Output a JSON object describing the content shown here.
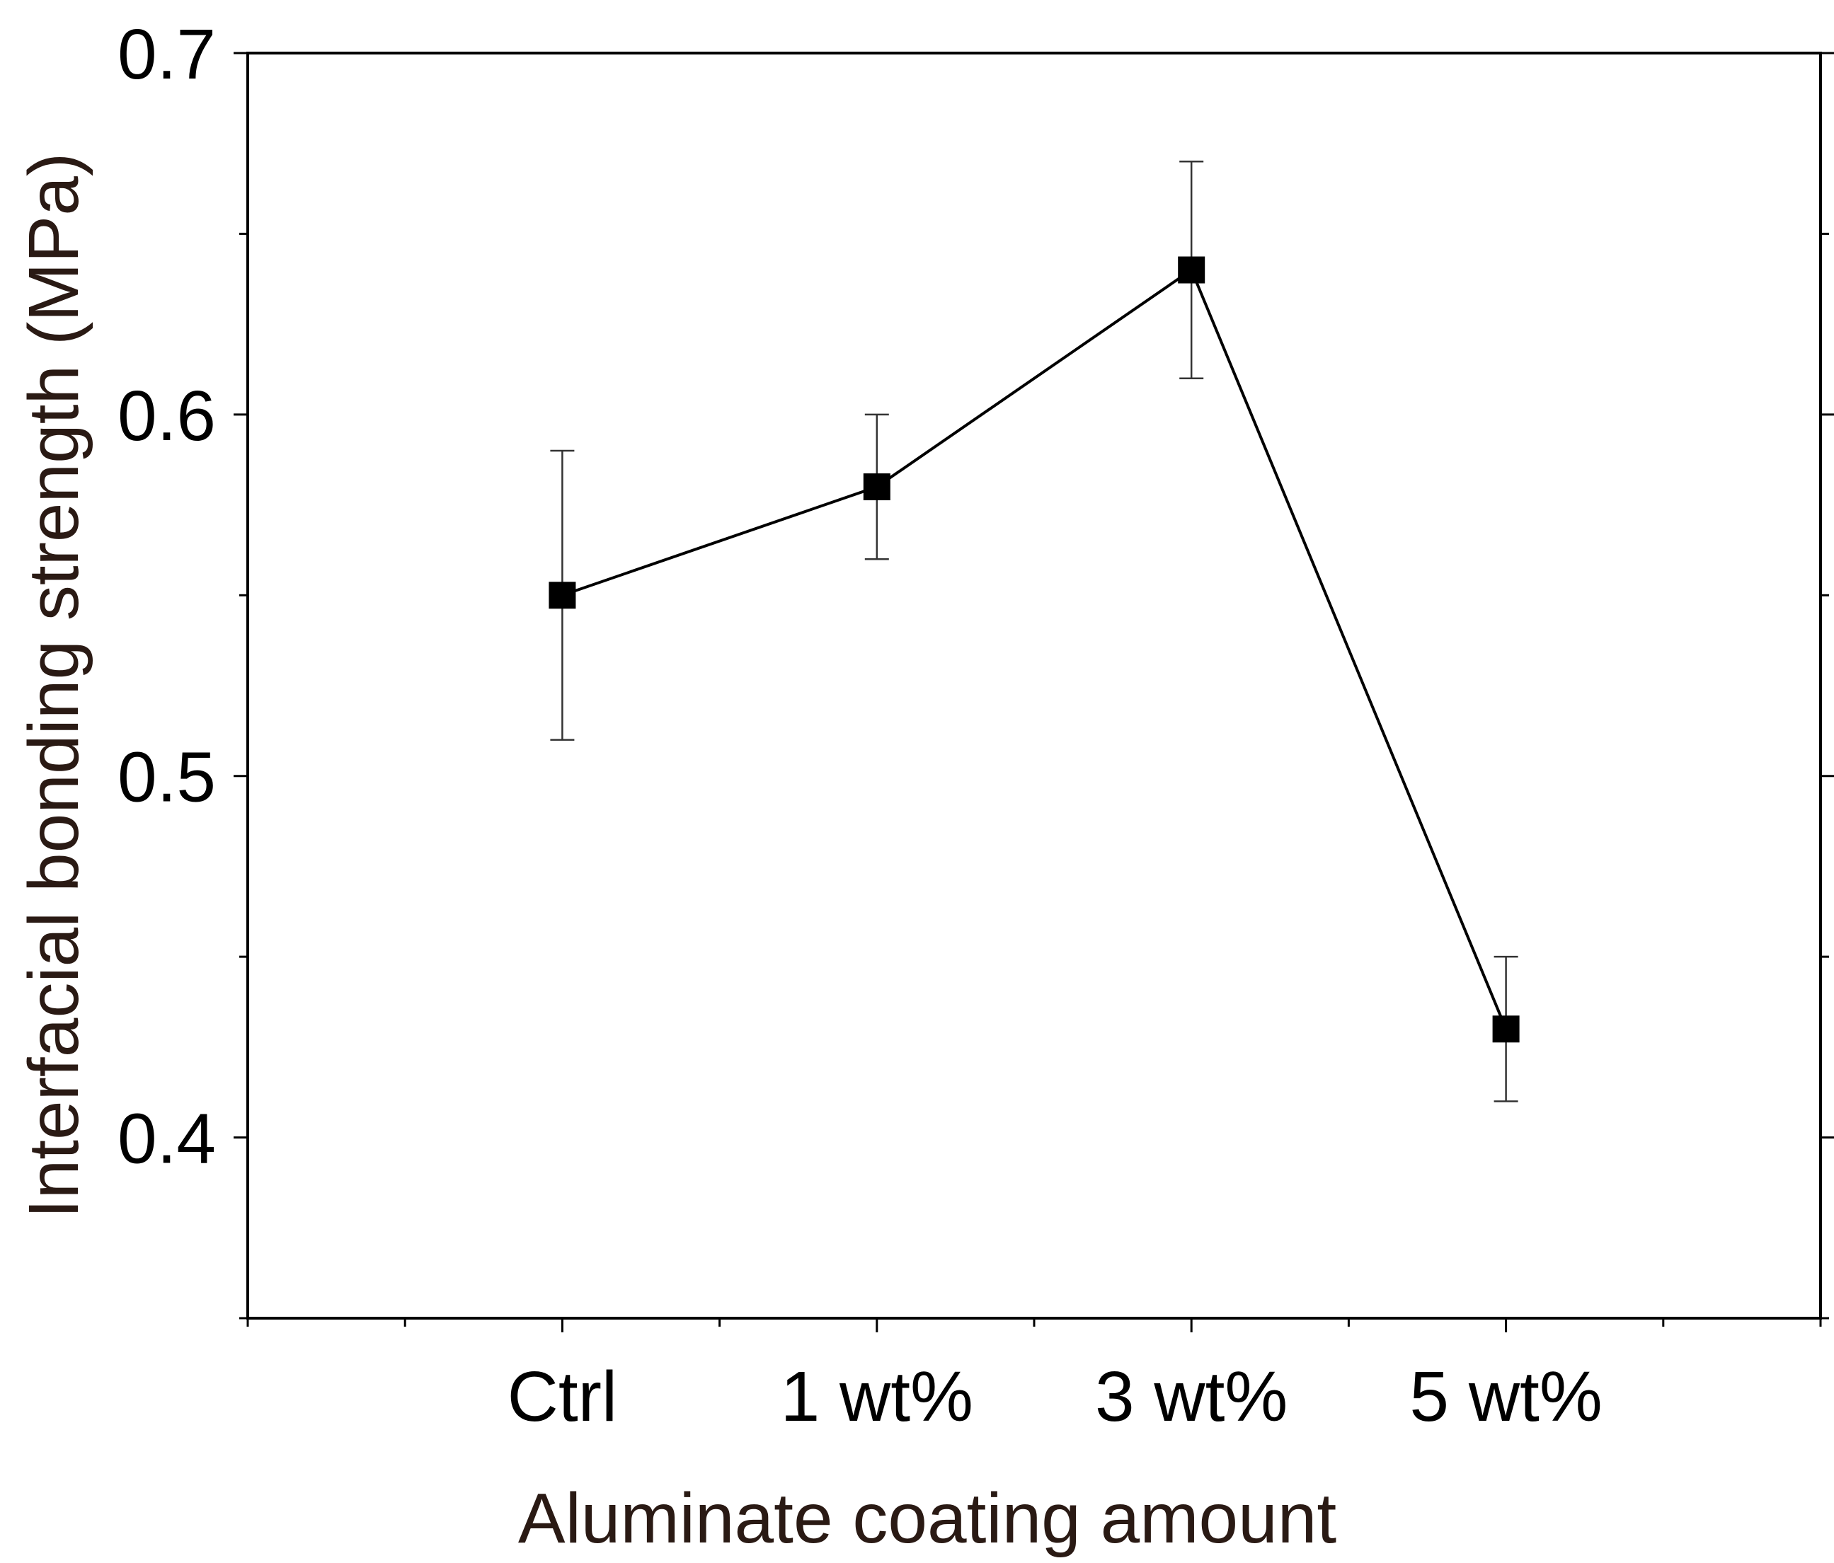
{
  "chart_data": {
    "type": "line",
    "categories": [
      "Ctrl",
      "1 wt%",
      "3 wt%",
      "5 wt%"
    ],
    "series": [
      {
        "values": [
          0.55,
          0.58,
          0.64,
          0.43
        ],
        "error_low": [
          0.51,
          0.56,
          0.61,
          0.41
        ],
        "error_high": [
          0.59,
          0.6,
          0.67,
          0.45
        ],
        "marker": "square",
        "color": "#000000"
      }
    ],
    "xlabel": "Aluminate coating amount",
    "ylabel": "Interfacial bonding strength (MPa)",
    "ylim": [
      0.35,
      0.7
    ],
    "yticks": [
      0.4,
      0.5,
      0.6,
      0.7
    ],
    "ytick_labels": [
      "0.4",
      "0.5",
      "0.6",
      "0.7"
    ],
    "grid": false,
    "legend": "none"
  }
}
